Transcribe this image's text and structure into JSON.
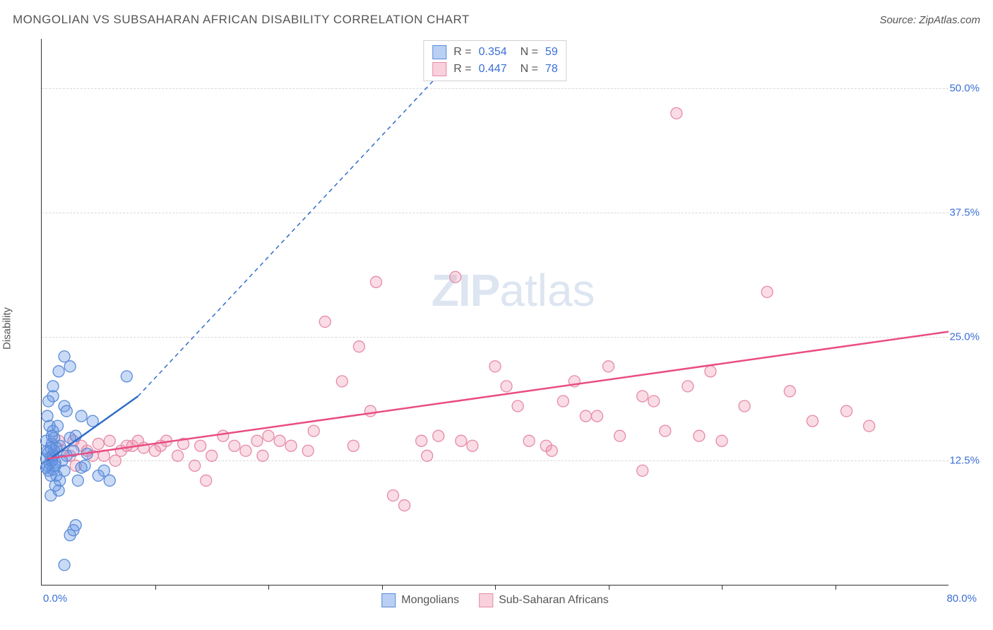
{
  "title": "MONGOLIAN VS SUBSAHARAN AFRICAN DISABILITY CORRELATION CHART",
  "source": "Source: ZipAtlas.com",
  "ylabel": "Disability",
  "watermark_a": "ZIP",
  "watermark_b": "atlas",
  "axes": {
    "xmin": 0,
    "xmax": 80,
    "xmin_label": "0.0%",
    "xmax_label": "80.0%",
    "ymin": 0,
    "ymax": 55,
    "yticks": [
      12.5,
      25.0,
      37.5,
      50.0
    ],
    "ytick_labels": [
      "12.5%",
      "25.0%",
      "37.5%",
      "50.0%"
    ],
    "xticks": [
      10,
      20,
      30,
      40,
      50,
      60,
      70
    ]
  },
  "colors": {
    "blue_fill": "rgba(100,150,230,0.35)",
    "blue_stroke": "#5a8bd8",
    "pink_fill": "rgba(240,140,170,0.30)",
    "pink_stroke": "#e58aa8",
    "blue_line": "#2f6dc9",
    "pink_line": "#e94d82",
    "grid": "#d8d8d8",
    "tick_text": "#3b6fd6"
  },
  "marker_radius": 8,
  "legend_top": [
    {
      "swatch_fill": "rgba(100,150,230,0.45)",
      "swatch_stroke": "#5a8bd8",
      "R": "0.354",
      "N": "59"
    },
    {
      "swatch_fill": "rgba(240,140,170,0.40)",
      "swatch_stroke": "#e58aa8",
      "R": "0.447",
      "N": "78"
    }
  ],
  "legend_bottom": [
    {
      "swatch_fill": "rgba(100,150,230,0.45)",
      "swatch_stroke": "#5a8bd8",
      "label": "Mongolians"
    },
    {
      "swatch_fill": "rgba(240,140,170,0.40)",
      "swatch_stroke": "#e58aa8",
      "label": "Sub-Saharan Africans"
    }
  ],
  "series": {
    "mongolians": {
      "trend_solid": {
        "x1": 0.5,
        "y1": 12.5,
        "x2": 8.5,
        "y2": 19.0
      },
      "trend_dashed": {
        "x1": 8.5,
        "y1": 19.0,
        "x2": 38.0,
        "y2": 55.0
      },
      "points": [
        [
          0.4,
          12.7
        ],
        [
          0.5,
          12.0
        ],
        [
          0.6,
          13.3
        ],
        [
          0.8,
          12.8
        ],
        [
          1.0,
          11.6
        ],
        [
          1.1,
          13.5
        ],
        [
          1.2,
          12.3
        ],
        [
          0.9,
          14.2
        ],
        [
          1.3,
          11.0
        ],
        [
          1.0,
          15.5
        ],
        [
          0.5,
          17.0
        ],
        [
          0.7,
          16.0
        ],
        [
          1.6,
          14.0
        ],
        [
          1.8,
          12.5
        ],
        [
          2.0,
          11.5
        ],
        [
          2.2,
          13.0
        ],
        [
          2.5,
          14.8
        ],
        [
          2.8,
          13.5
        ],
        [
          3.2,
          10.5
        ],
        [
          3.5,
          11.8
        ],
        [
          3.8,
          12.0
        ],
        [
          1.0,
          20.0
        ],
        [
          1.5,
          21.5
        ],
        [
          2.0,
          18.0
        ],
        [
          2.5,
          22.0
        ],
        [
          2.0,
          23.0
        ],
        [
          7.5,
          21.0
        ],
        [
          5.0,
          11.0
        ],
        [
          5.5,
          11.5
        ],
        [
          6.0,
          10.5
        ],
        [
          4.0,
          13.2
        ],
        [
          0.8,
          9.0
        ],
        [
          1.5,
          9.5
        ],
        [
          1.0,
          19.0
        ],
        [
          0.6,
          18.5
        ],
        [
          2.2,
          17.5
        ],
        [
          3.0,
          15.0
        ],
        [
          3.5,
          17.0
        ],
        [
          4.5,
          16.5
        ],
        [
          0.8,
          11.0
        ],
        [
          1.2,
          10.0
        ],
        [
          1.6,
          10.5
        ],
        [
          2.5,
          5.0
        ],
        [
          2.8,
          5.5
        ],
        [
          2.0,
          2.0
        ],
        [
          3.0,
          6.0
        ],
        [
          0.4,
          14.5
        ],
        [
          0.9,
          15.0
        ],
        [
          1.4,
          16.0
        ],
        [
          1.0,
          13.0
        ],
        [
          1.3,
          13.8
        ],
        [
          0.7,
          12.2
        ],
        [
          0.5,
          13.5
        ],
        [
          1.1,
          14.8
        ],
        [
          0.9,
          12.5
        ],
        [
          0.6,
          11.5
        ],
        [
          0.8,
          13.8
        ],
        [
          1.2,
          12.0
        ],
        [
          0.4,
          11.8
        ]
      ]
    },
    "subsaharan": {
      "trend": {
        "x1": 0.5,
        "y1": 12.7,
        "x2": 80.0,
        "y2": 25.5
      },
      "points": [
        [
          1.0,
          13.0
        ],
        [
          1.5,
          14.5
        ],
        [
          2.5,
          13.0
        ],
        [
          3.5,
          14.0
        ],
        [
          4.0,
          13.5
        ],
        [
          5.0,
          14.2
        ],
        [
          5.5,
          13.0
        ],
        [
          6.0,
          14.5
        ],
        [
          7.0,
          13.5
        ],
        [
          8.0,
          14.0
        ],
        [
          9.0,
          13.8
        ],
        [
          10.0,
          13.5
        ],
        [
          11.0,
          14.5
        ],
        [
          12.0,
          13.0
        ],
        [
          12.5,
          14.2
        ],
        [
          13.5,
          12.0
        ],
        [
          14.0,
          14.0
        ],
        [
          14.5,
          10.5
        ],
        [
          16.0,
          15.0
        ],
        [
          17.0,
          14.0
        ],
        [
          18.0,
          13.5
        ],
        [
          19.0,
          14.5
        ],
        [
          20.0,
          15.0
        ],
        [
          22.0,
          14.0
        ],
        [
          23.5,
          13.5
        ],
        [
          25.0,
          26.5
        ],
        [
          26.5,
          20.5
        ],
        [
          27.5,
          14.0
        ],
        [
          28.0,
          24.0
        ],
        [
          29.0,
          17.5
        ],
        [
          29.5,
          30.5
        ],
        [
          31.0,
          9.0
        ],
        [
          32.0,
          8.0
        ],
        [
          33.5,
          14.5
        ],
        [
          35.0,
          15.0
        ],
        [
          36.5,
          31.0
        ],
        [
          38.0,
          14.0
        ],
        [
          40.0,
          22.0
        ],
        [
          41.0,
          20.0
        ],
        [
          42.0,
          18.0
        ],
        [
          43.0,
          14.5
        ],
        [
          44.5,
          14.0
        ],
        [
          46.0,
          18.5
        ],
        [
          48.0,
          17.0
        ],
        [
          50.0,
          22.0
        ],
        [
          51.0,
          15.0
        ],
        [
          53.0,
          19.0
        ],
        [
          54.0,
          18.5
        ],
        [
          55.0,
          15.5
        ],
        [
          56.0,
          47.5
        ],
        [
          57.0,
          20.0
        ],
        [
          59.0,
          21.5
        ],
        [
          60.0,
          14.5
        ],
        [
          62.0,
          18.0
        ],
        [
          64.0,
          29.5
        ],
        [
          66.0,
          19.5
        ],
        [
          68.0,
          16.5
        ],
        [
          71.0,
          17.5
        ],
        [
          73.0,
          16.0
        ],
        [
          53.0,
          11.5
        ],
        [
          34.0,
          13.0
        ],
        [
          6.5,
          12.5
        ],
        [
          3.0,
          12.0
        ],
        [
          4.5,
          13.0
        ],
        [
          1.8,
          13.5
        ],
        [
          2.8,
          14.5
        ],
        [
          7.5,
          14.0
        ],
        [
          8.5,
          14.5
        ],
        [
          10.5,
          14.0
        ],
        [
          15.0,
          13.0
        ],
        [
          21.0,
          14.5
        ],
        [
          24.0,
          15.5
        ],
        [
          37.0,
          14.5
        ],
        [
          45.0,
          13.5
        ],
        [
          47.0,
          20.5
        ],
        [
          49.0,
          17.0
        ],
        [
          58.0,
          15.0
        ],
        [
          19.5,
          13.0
        ]
      ]
    }
  }
}
